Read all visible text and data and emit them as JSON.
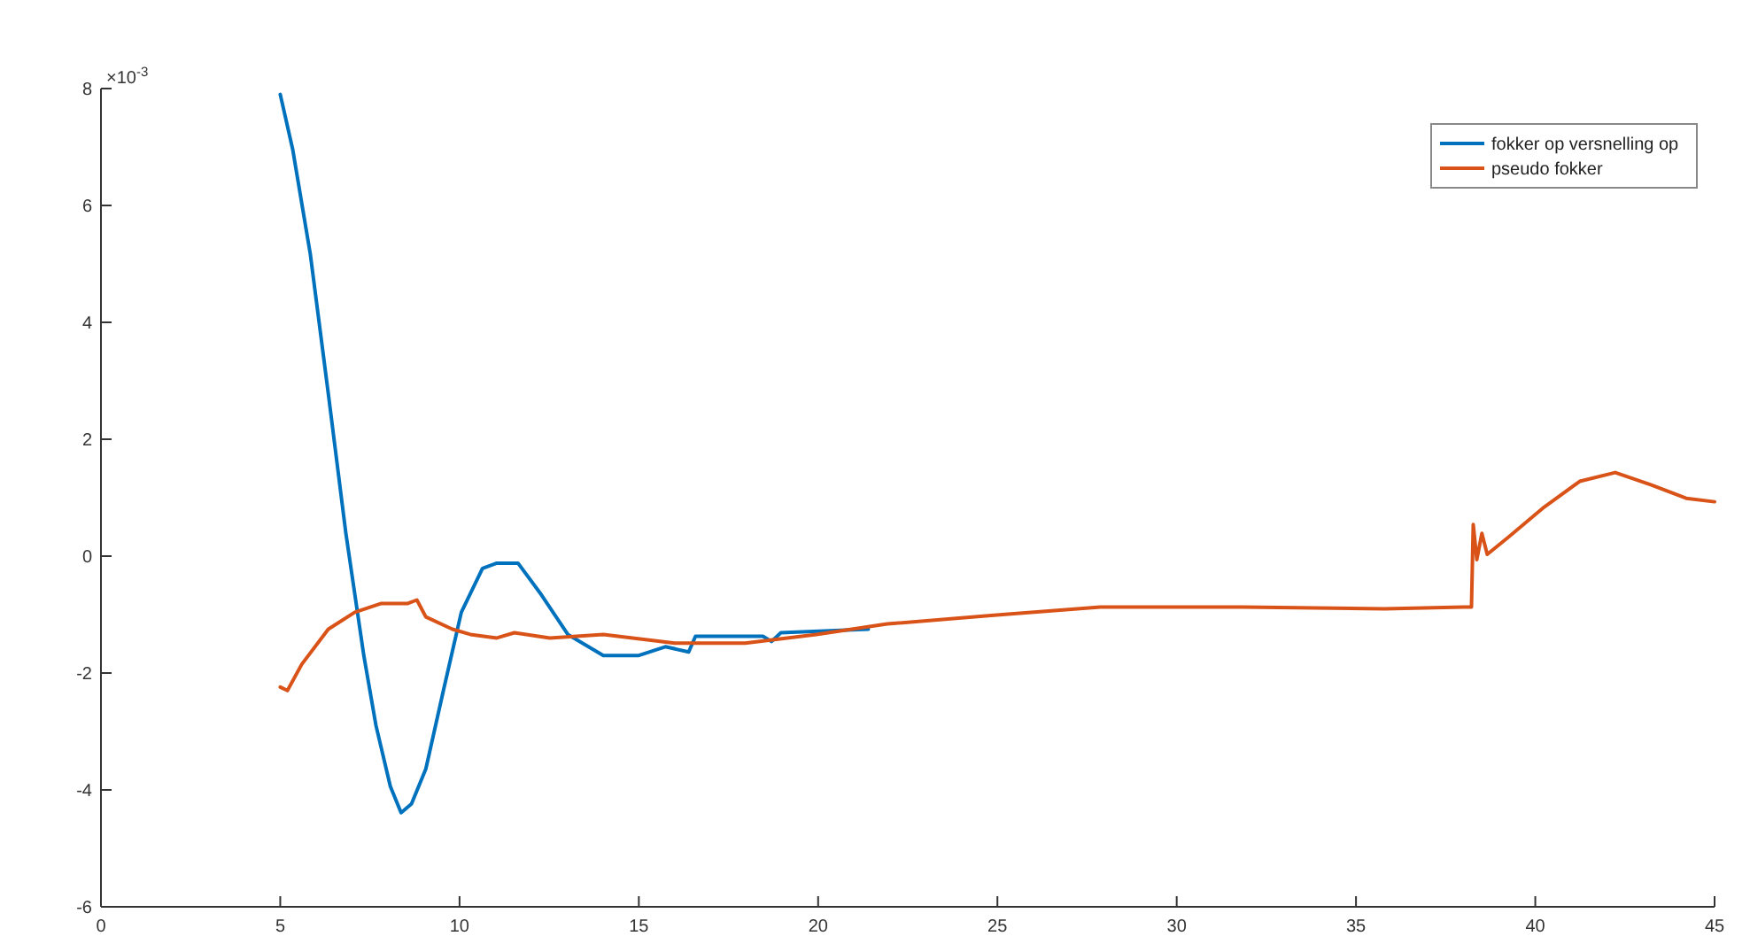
{
  "chart_data": {
    "type": "line",
    "legend": "top right",
    "xlim": [
      0,
      45
    ],
    "xticks": [
      0,
      5,
      10,
      15,
      20,
      25,
      30,
      35,
      40,
      45
    ],
    "ylim": [
      -6,
      8
    ],
    "yticks": [
      -6,
      -4,
      -2,
      0,
      2,
      4,
      6,
      8
    ],
    "annotations": [
      "×10$^{-3}$"
    ],
    "series": [
      {
        "name": "fokker op versnelling op",
        "color": "#0072bd",
        "x": [
          5,
          5.35,
          5.84,
          6.34,
          6.83,
          7.33,
          7.67,
          8.07,
          8.37,
          8.66,
          9.06,
          9.55,
          10.05,
          10.64,
          11.04,
          11.63,
          12.28,
          13.02,
          14.01,
          15,
          15.74,
          16.39,
          16.58,
          18.46,
          18.7,
          18.96,
          21.4
        ],
        "values": [
          7.9,
          6.95,
          5.16,
          2.78,
          0.39,
          -1.7,
          -2.9,
          -3.94,
          -4.39,
          -4.24,
          -3.64,
          -2.3,
          -0.96,
          -0.21,
          -0.12,
          -0.12,
          -0.66,
          -1.34,
          -1.7,
          -1.7,
          -1.55,
          -1.64,
          -1.37,
          -1.37,
          -1.46,
          -1.31,
          -1.25
        ]
      },
      {
        "name": "pseudo fokker",
        "color": "#d95319",
        "x": [
          5,
          5.2,
          5.6,
          6.34,
          7.08,
          7.82,
          8.56,
          8.81,
          9.06,
          9.8,
          10.3,
          11.04,
          11.53,
          12.52,
          14.01,
          16,
          17.97,
          19.95,
          21.93,
          24.9,
          27.87,
          31.83,
          35.79,
          38,
          38.22,
          38.27,
          38.37,
          38.51,
          38.66,
          39.26,
          40.25,
          41.24,
          42.23,
          43.22,
          44.21,
          45
        ],
        "values": [
          -2.24,
          -2.3,
          -1.85,
          -1.25,
          -0.96,
          -0.81,
          -0.81,
          -0.75,
          -1.04,
          -1.25,
          -1.34,
          -1.4,
          -1.31,
          -1.4,
          -1.34,
          -1.49,
          -1.49,
          -1.34,
          -1.16,
          -1.01,
          -0.87,
          -0.87,
          -0.9,
          -0.87,
          -0.87,
          0.54,
          -0.06,
          0.39,
          0.03,
          0.33,
          0.84,
          1.28,
          1.43,
          1.22,
          0.99,
          0.93
        ]
      }
    ]
  }
}
